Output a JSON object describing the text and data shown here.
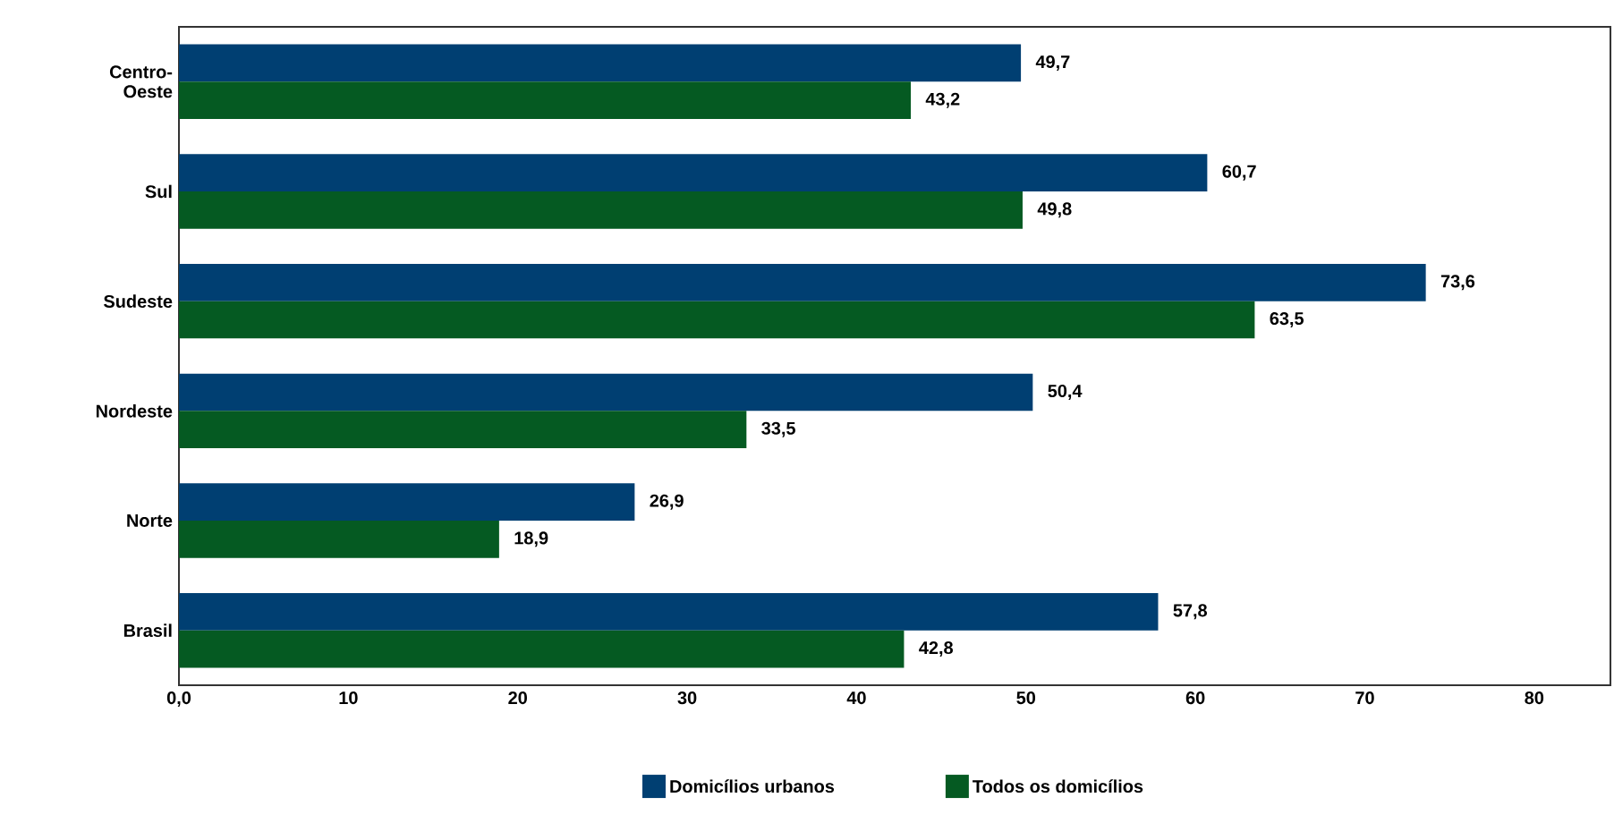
{
  "chart_data": {
    "type": "bar",
    "orientation": "horizontal",
    "categories": [
      "Centro-Oeste",
      "Sul",
      "Sudeste",
      "Nordeste",
      "Norte",
      "Brasil"
    ],
    "series": [
      {
        "name": "Domicílios urbanos",
        "color": "#003f72",
        "values": [
          49.7,
          60.7,
          73.6,
          50.4,
          26.9,
          57.8
        ],
        "value_labels": [
          "49,7",
          "60,7",
          "73,6",
          "50,4",
          "26,9",
          "57,8"
        ]
      },
      {
        "name": "Todos os domicílios",
        "color": "#055a22",
        "values": [
          43.2,
          49.8,
          63.5,
          33.5,
          18.9,
          42.8
        ],
        "value_labels": [
          "43,2",
          "49,8",
          "63,5",
          "33,5",
          "18,9",
          "42,8"
        ]
      }
    ],
    "xlim": [
      0,
      84.5
    ],
    "xticks": [
      {
        "value": 0,
        "label": "0,0"
      },
      10,
      20,
      30,
      40,
      50,
      60,
      70,
      80
    ],
    "legend": "bottom",
    "grid": false
  }
}
